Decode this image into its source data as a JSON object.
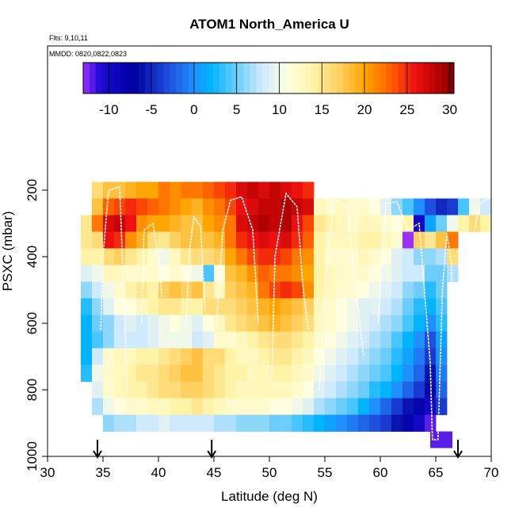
{
  "chart_data": {
    "type": "heatmap",
    "title": "ATOM1 North_America U",
    "subtitle_flights": "Flts: 9,10,11",
    "subtitle_dates": "MMDD: 0820,0822,0823",
    "xlabel": "Latitude (deg N)",
    "ylabel": "PSXC (mbar)",
    "xlim": [
      30,
      70
    ],
    "ylim": [
      1000,
      0
    ],
    "x_ticks": [
      30,
      35,
      40,
      45,
      50,
      55,
      60,
      65,
      70
    ],
    "y_ticks": [
      200,
      400,
      600,
      800,
      1000
    ],
    "colorbar": {
      "range": [
        -13,
        30.5
      ],
      "ticks": [
        -10,
        -5,
        0,
        5,
        10,
        15,
        20,
        25,
        30
      ],
      "stops": [
        {
          "v": -13,
          "c": "#9b30ff"
        },
        {
          "v": -11,
          "c": "#1a0ad4"
        },
        {
          "v": -7,
          "c": "#0000a0"
        },
        {
          "v": -3,
          "c": "#1f4fe0"
        },
        {
          "v": 0,
          "c": "#1e90ff"
        },
        {
          "v": 2,
          "c": "#00b4ff"
        },
        {
          "v": 5,
          "c": "#6ccdfb"
        },
        {
          "v": 8,
          "c": "#cfeafc"
        },
        {
          "v": 11,
          "c": "#ffffe0"
        },
        {
          "v": 14,
          "c": "#fff3a8"
        },
        {
          "v": 17,
          "c": "#ffd060"
        },
        {
          "v": 20,
          "c": "#ffa500"
        },
        {
          "v": 23,
          "c": "#ff6000"
        },
        {
          "v": 26,
          "c": "#ee1010"
        },
        {
          "v": 29,
          "c": "#b00000"
        },
        {
          "v": 30.5,
          "c": "#7a0000"
        }
      ]
    },
    "lat_bins": [
      33.5,
      34.5,
      35.5,
      36.5,
      37.5,
      38.5,
      39.5,
      40.5,
      41.5,
      42.5,
      43.5,
      44.5,
      45.5,
      46.5,
      47.5,
      48.5,
      49.5,
      50.5,
      51.5,
      52.5,
      53.5,
      54.5,
      55.5,
      56.5,
      57.5,
      58.5,
      59.5,
      60.5,
      61.5,
      62.5,
      63.5,
      64.5,
      65.5,
      66.5,
      67.5,
      68.5,
      69.5
    ],
    "pressure_bins": [
      200,
      250,
      300,
      350,
      400,
      450,
      500,
      550,
      600,
      650,
      700,
      750,
      800,
      850,
      900
    ],
    "u_wind": [
      [
        null,
        16,
        18,
        18,
        19,
        20,
        20,
        22,
        21,
        22,
        22,
        23,
        24,
        25,
        27,
        28,
        27,
        28,
        27,
        26,
        25,
        null,
        null,
        null,
        null,
        null,
        null,
        null,
        null,
        null,
        null,
        null,
        null,
        null,
        null,
        null,
        null
      ],
      [
        null,
        18,
        23,
        24,
        25,
        24,
        23,
        22,
        21,
        20,
        19,
        21,
        22,
        24,
        26,
        27,
        28,
        28,
        29,
        28,
        27,
        13,
        12,
        13,
        12,
        12,
        11,
        9,
        6,
        4,
        0,
        -3,
        -5,
        -4,
        4,
        10,
        8
      ],
      [
        15,
        22,
        27,
        28,
        26,
        21,
        20,
        20,
        19,
        18,
        18,
        20,
        21,
        22,
        27,
        28,
        29,
        28,
        29,
        26,
        24,
        15,
        14,
        13,
        12,
        13,
        13,
        12,
        11,
        14,
        -10,
        1,
        5,
        10,
        14,
        16,
        14
      ],
      [
        15,
        16,
        26,
        25,
        21,
        19,
        16,
        15,
        17,
        18,
        18,
        18,
        19,
        22,
        25,
        26,
        27,
        26,
        27,
        25,
        23,
        14,
        13,
        13,
        13,
        14,
        14,
        13,
        12,
        -13,
        17,
        15,
        18,
        22,
        null,
        null,
        null
      ],
      [
        14,
        14,
        16,
        17,
        15,
        14,
        12,
        10,
        13,
        15,
        16,
        16,
        17,
        20,
        22,
        24,
        25,
        25,
        24,
        22,
        21,
        14,
        12,
        12,
        12,
        13,
        12,
        11,
        9,
        8,
        6,
        6,
        7,
        16,
        null,
        null,
        null
      ],
      [
        9,
        10,
        13,
        13,
        12,
        12,
        12,
        11,
        12,
        11,
        10,
        4,
        11,
        18,
        19,
        21,
        23,
        22,
        22,
        21,
        20,
        14,
        13,
        12,
        12,
        12,
        11,
        10,
        9,
        8,
        8,
        5,
        5,
        7,
        null,
        null,
        null
      ],
      [
        6,
        8,
        10,
        12,
        14,
        15,
        14,
        17,
        18,
        17,
        18,
        15,
        13,
        17,
        18,
        19,
        22,
        24,
        25,
        24,
        21,
        14,
        13,
        12,
        12,
        11,
        10,
        9,
        8,
        6,
        5,
        3,
        5,
        null,
        null,
        null,
        null
      ],
      [
        3,
        6,
        9,
        11,
        11,
        13,
        14,
        15,
        15,
        14,
        14,
        16,
        16,
        16,
        17,
        18,
        19,
        20,
        19,
        18,
        17,
        13,
        12,
        11,
        10,
        9,
        9,
        8,
        7,
        5,
        3,
        2,
        4,
        null,
        null,
        null,
        null
      ],
      [
        2,
        5,
        6,
        8,
        9,
        8,
        9,
        10,
        11,
        10,
        9,
        11,
        13,
        15,
        16,
        17,
        18,
        19,
        18,
        17,
        16,
        13,
        12,
        11,
        10,
        9,
        8,
        7,
        6,
        4,
        2,
        0,
        3,
        null,
        null,
        null,
        null
      ],
      [
        2,
        4,
        6,
        8,
        8,
        8,
        9,
        10,
        10,
        10,
        8,
        9,
        12,
        12,
        13,
        14,
        15,
        16,
        16,
        15,
        14,
        12,
        11,
        10,
        9,
        8,
        7,
        6,
        4,
        2,
        0,
        -3,
        1,
        null,
        null,
        null,
        null
      ],
      [
        2,
        8,
        12,
        13,
        13,
        14,
        14,
        15,
        16,
        17,
        18,
        16,
        16,
        14,
        13,
        13,
        14,
        15,
        15,
        14,
        13,
        11,
        10,
        9,
        8,
        7,
        6,
        5,
        3,
        1,
        -1,
        -4,
        0,
        null,
        null,
        null,
        null
      ],
      [
        3,
        10,
        12,
        13,
        14,
        15,
        15,
        16,
        17,
        18,
        18,
        16,
        15,
        14,
        14,
        13,
        13,
        14,
        14,
        13,
        12,
        10,
        9,
        8,
        7,
        6,
        5,
        4,
        2,
        0,
        -2,
        -6,
        -1,
        null,
        null,
        null,
        null
      ],
      [
        null,
        9,
        12,
        13,
        14,
        14,
        15,
        16,
        16,
        17,
        17,
        16,
        15,
        14,
        13,
        13,
        13,
        13,
        13,
        12,
        11,
        9,
        8,
        7,
        6,
        5,
        3,
        2,
        0,
        -2,
        -4,
        -8,
        -2,
        null,
        null,
        null,
        null
      ],
      [
        null,
        7,
        10,
        11,
        12,
        12,
        13,
        13,
        14,
        14,
        15,
        14,
        13,
        12,
        12,
        12,
        12,
        11,
        11,
        10,
        9,
        7,
        6,
        5,
        4,
        2,
        0,
        -2,
        -4,
        -6,
        -8,
        -10,
        -4,
        null,
        null,
        null,
        null
      ],
      [
        null,
        null,
        6,
        7,
        7,
        8,
        8,
        9,
        8,
        8,
        8,
        8,
        7,
        7,
        6,
        6,
        6,
        5,
        5,
        4,
        3,
        2,
        1,
        0,
        -1,
        -2,
        -3,
        -4,
        -6,
        -8,
        -10,
        -12,
        null,
        null,
        null,
        null,
        null
      ]
    ],
    "annotations": [
      "profile tracks (white lines)",
      "arrows at latitudes 34.5, 44.8, 67"
    ],
    "arrow_lats": [
      34.5,
      44.8,
      67
    ],
    "legend_placement": "top",
    "grid": false
  }
}
